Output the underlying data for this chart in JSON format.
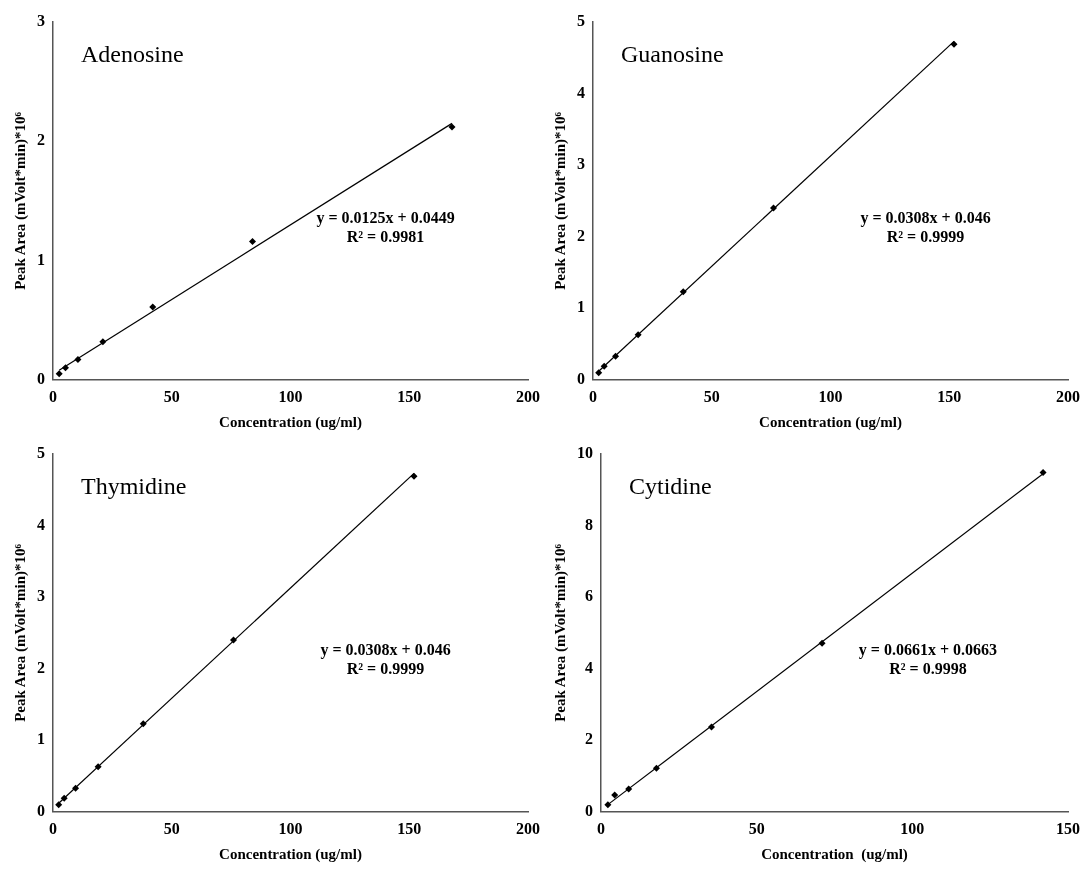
{
  "chart_data": [
    {
      "type": "scatter",
      "title": "Adenosine",
      "xlabel": "Concentration (ug/ml)",
      "ylabel": "Peak Area (mVolt*min)*10⁶",
      "xlim": [
        0,
        200
      ],
      "xticks": [
        0,
        50,
        100,
        150,
        200
      ],
      "ylim": [
        0,
        3
      ],
      "yticks": [
        0,
        1,
        2,
        3
      ],
      "grid": false,
      "legend": false,
      "marker": "diamond",
      "annotations": [
        "y = 0.0125x + 0.0449",
        "R² = 0.9981"
      ],
      "series": [
        {
          "color": "#000000",
          "x": [
            2.6,
            5.25,
            10.5,
            21,
            42,
            84,
            168
          ],
          "values": [
            0.05,
            0.1,
            0.17,
            0.32,
            0.61,
            1.16,
            2.12
          ]
        },
        {
          "type": "line",
          "color": "#000000",
          "marker": "none",
          "x": [
            2.6,
            168
          ],
          "values": [
            0.08,
            2.15
          ]
        }
      ]
    },
    {
      "type": "scatter",
      "title": "Guanosine",
      "xlabel": "Concentration (ug/ml)",
      "ylabel": "Peak Area (mVolt*min)*10⁶",
      "xlim": [
        0,
        200
      ],
      "xticks": [
        0,
        50,
        100,
        150,
        200
      ],
      "ylim": [
        0,
        5
      ],
      "yticks": [
        0,
        1,
        2,
        3,
        4,
        5
      ],
      "grid": false,
      "legend": false,
      "marker": "diamond",
      "annotations": [
        "y = 0.0308x + 0.046",
        "R² = 0.9999"
      ],
      "series": [
        {
          "color": "#000000",
          "x": [
            2.4,
            4.7,
            9.5,
            19,
            38,
            76,
            152
          ],
          "values": [
            0.1,
            0.19,
            0.33,
            0.63,
            1.23,
            2.4,
            4.69
          ]
        },
        {
          "type": "line",
          "color": "#000000",
          "marker": "none",
          "x": [
            2.4,
            152
          ],
          "values": [
            0.12,
            4.73
          ]
        }
      ]
    },
    {
      "type": "scatter",
      "title": "Thymidine",
      "xlabel": "Concentration (ug/ml)",
      "ylabel": "Peak Area (mVolt*min)*10⁶",
      "xlim": [
        0,
        200
      ],
      "xticks": [
        0,
        50,
        100,
        150,
        200
      ],
      "ylim": [
        0,
        5
      ],
      "yticks": [
        0,
        1,
        2,
        3,
        4,
        5
      ],
      "grid": false,
      "legend": false,
      "marker": "diamond",
      "annotations": [
        "y = 0.0308x + 0.046",
        "R² = 0.9999"
      ],
      "series": [
        {
          "color": "#000000",
          "x": [
            2.4,
            4.7,
            9.5,
            19,
            38,
            76,
            152
          ],
          "values": [
            0.1,
            0.19,
            0.33,
            0.63,
            1.23,
            2.4,
            4.69
          ]
        },
        {
          "type": "line",
          "color": "#000000",
          "marker": "none",
          "x": [
            2.4,
            152
          ],
          "values": [
            0.12,
            4.73
          ]
        }
      ]
    },
    {
      "type": "scatter",
      "title": "Cytidine",
      "xlabel": "Concentration  (ug/ml)",
      "ylabel": "Peak Area (mVolt*min)*10⁶",
      "xlim": [
        0,
        150
      ],
      "xticks": [
        0,
        50,
        100,
        150
      ],
      "ylim": [
        0,
        10
      ],
      "yticks": [
        0,
        2,
        4,
        6,
        8,
        10
      ],
      "grid": false,
      "legend": false,
      "marker": "diamond",
      "annotations": [
        "y = 0.0661x + 0.0663",
        "R² = 0.9998"
      ],
      "series": [
        {
          "color": "#000000",
          "x": [
            2.2,
            4.4,
            8.9,
            17.8,
            35.5,
            71,
            142
          ],
          "values": [
            0.2,
            0.47,
            0.64,
            1.22,
            2.37,
            4.71,
            9.48
          ]
        },
        {
          "type": "line",
          "color": "#000000",
          "marker": "none",
          "x": [
            2.2,
            142
          ],
          "values": [
            0.2,
            9.45
          ]
        }
      ]
    }
  ]
}
